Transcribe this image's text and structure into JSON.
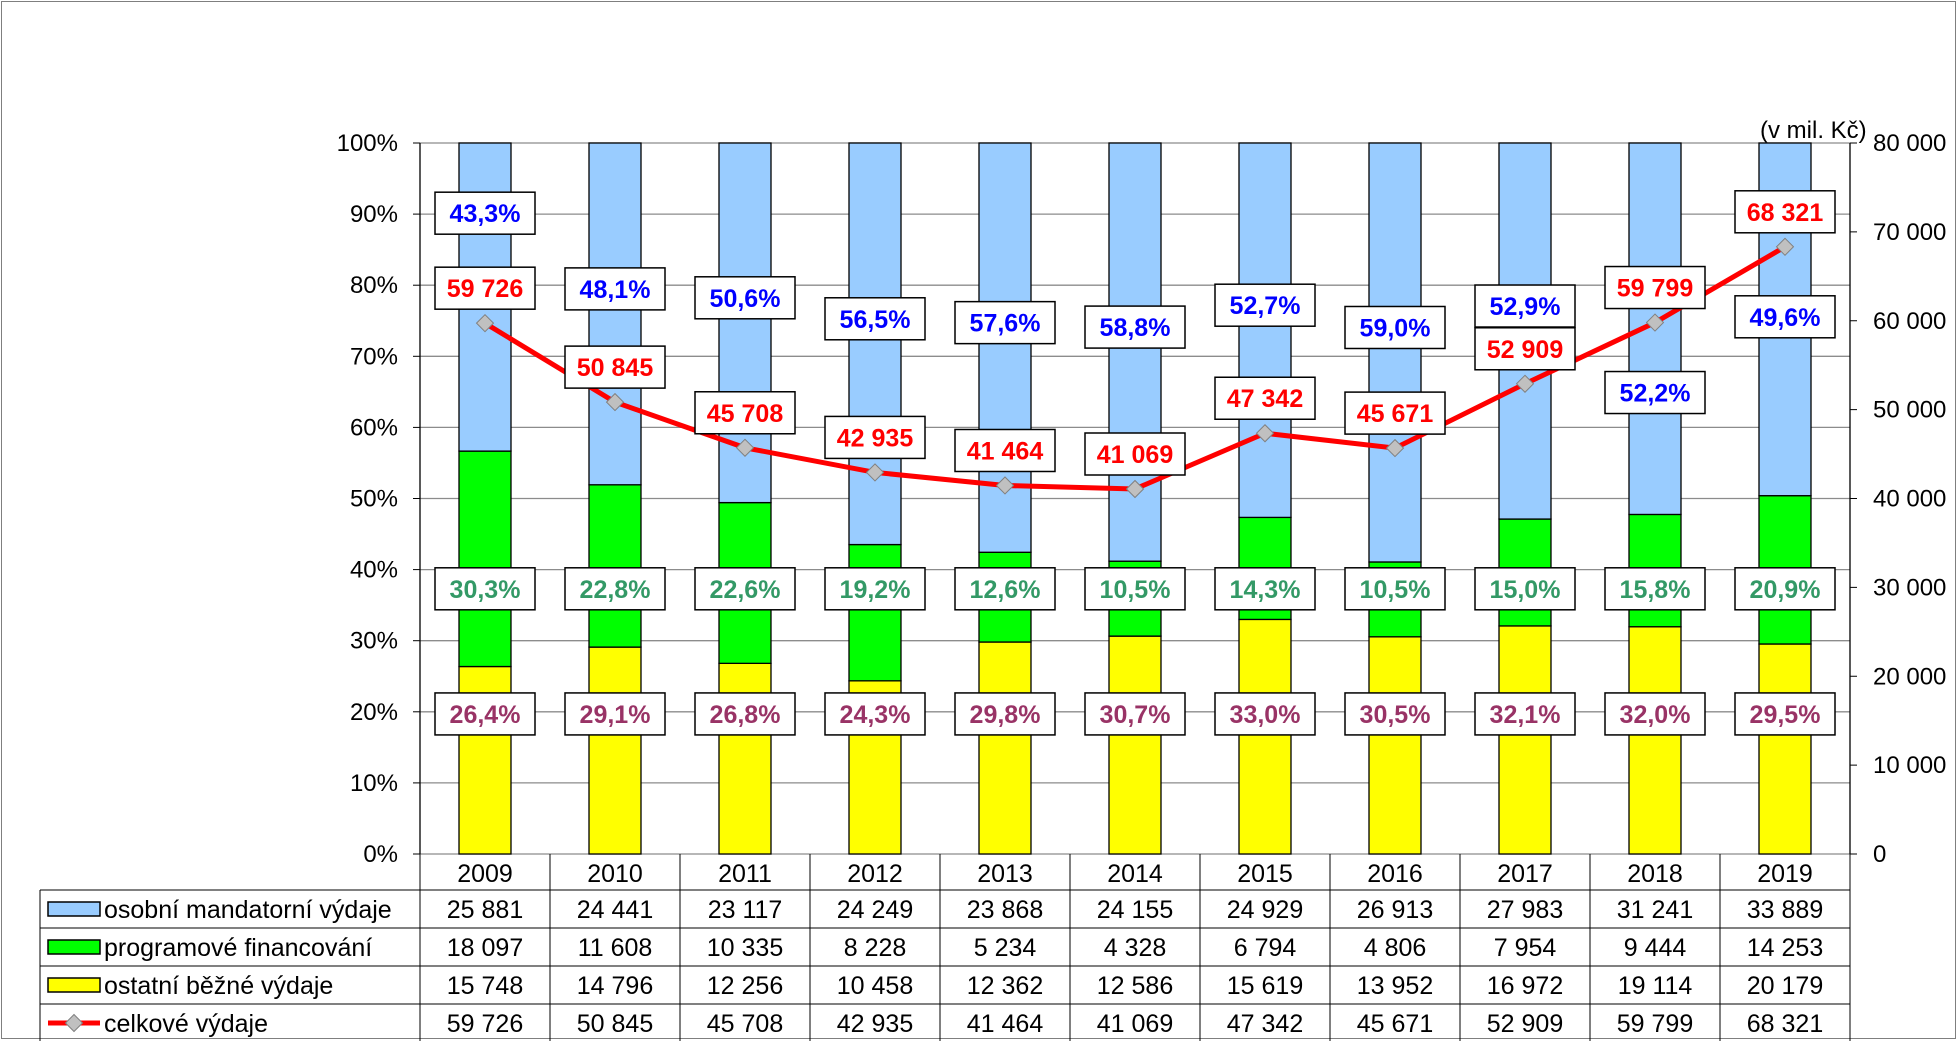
{
  "unit_label": "(v mil. Kč)",
  "chart_data": {
    "type": "bar",
    "stacked": true,
    "stacking": "percent",
    "categories": [
      "2009",
      "2010",
      "2011",
      "2012",
      "2013",
      "2014",
      "2015",
      "2016",
      "2017",
      "2018",
      "2019"
    ],
    "series": [
      {
        "name": "ostatní běžné výdaje",
        "color": "#ffff00",
        "values": [
          15748,
          14796,
          12256,
          10458,
          12362,
          12586,
          15619,
          13952,
          16972,
          19114,
          20179
        ],
        "percent_labels": [
          "26,4%",
          "29,1%",
          "26,8%",
          "24,3%",
          "29,8%",
          "30,7%",
          "33,0%",
          "30,5%",
          "32,1%",
          "32,0%",
          "29,5%"
        ],
        "label_color": "#993366"
      },
      {
        "name": "programové financování",
        "color": "#00ff00",
        "values": [
          18097,
          11608,
          10335,
          8228,
          5234,
          4328,
          6794,
          4806,
          7954,
          9444,
          14253
        ],
        "percent_labels": [
          "30,3%",
          "22,8%",
          "22,6%",
          "19,2%",
          "12,6%",
          "10,5%",
          "14,3%",
          "10,5%",
          "15,0%",
          "15,8%",
          "20,9%"
        ],
        "label_color": "#339966"
      },
      {
        "name": "osobní mandatorní výdaje",
        "color": "#99ccff",
        "values": [
          25881,
          24441,
          23117,
          24249,
          23868,
          24155,
          24929,
          26913,
          27983,
          31241,
          33889
        ],
        "percent_labels": [
          "43,3%",
          "48,1%",
          "50,6%",
          "56,5%",
          "57,6%",
          "58,8%",
          "52,7%",
          "59,0%",
          "52,9%",
          "52,2%",
          "49,6%"
        ],
        "label_color": "#0000ff"
      }
    ],
    "line": {
      "name": "celkové výdaje",
      "color": "#ff0000",
      "marker_color": "#c0c0c0",
      "values": [
        59726,
        50845,
        45708,
        42935,
        41464,
        41069,
        47342,
        45671,
        52909,
        59799,
        68321
      ],
      "value_labels": [
        "59 726",
        "50 845",
        "45 708",
        "42 935",
        "41 464",
        "41 069",
        "47 342",
        "45 671",
        "52 909",
        "59 799",
        "68 321"
      ]
    },
    "y_left": {
      "ticks": [
        "0%",
        "10%",
        "20%",
        "30%",
        "40%",
        "50%",
        "60%",
        "70%",
        "80%",
        "90%",
        "100%"
      ],
      "range": [
        0,
        100
      ]
    },
    "y_right": {
      "ticks": [
        "0",
        "10 000",
        "20 000",
        "30 000",
        "40 000",
        "50 000",
        "60 000",
        "70 000",
        "80 000"
      ],
      "range": [
        0,
        80000
      ]
    },
    "grid": true,
    "data_table": {
      "rows": [
        {
          "label": "osobní mandatorní výdaje",
          "cells": [
            "25 881",
            "24 441",
            "23 117",
            "24 249",
            "23 868",
            "24 155",
            "24 929",
            "26 913",
            "27 983",
            "31 241",
            "33 889"
          ]
        },
        {
          "label": "programové financování",
          "cells": [
            "18 097",
            "11 608",
            "10 335",
            "8 228",
            "5 234",
            "4 328",
            "6 794",
            "4 806",
            "7 954",
            "9 444",
            "14 253"
          ]
        },
        {
          "label": "ostatní běžné výdaje",
          "cells": [
            "15 748",
            "14 796",
            "12 256",
            "10 458",
            "12 362",
            "12 586",
            "15 619",
            "13 952",
            "16 972",
            "19 114",
            "20 179"
          ]
        },
        {
          "label": "celkové výdaje",
          "cells": [
            "59 726",
            "50 845",
            "45 708",
            "42 935",
            "41 464",
            "41 069",
            "47 342",
            "45 671",
            "52 909",
            "59 799",
            "68 321"
          ]
        }
      ]
    }
  }
}
